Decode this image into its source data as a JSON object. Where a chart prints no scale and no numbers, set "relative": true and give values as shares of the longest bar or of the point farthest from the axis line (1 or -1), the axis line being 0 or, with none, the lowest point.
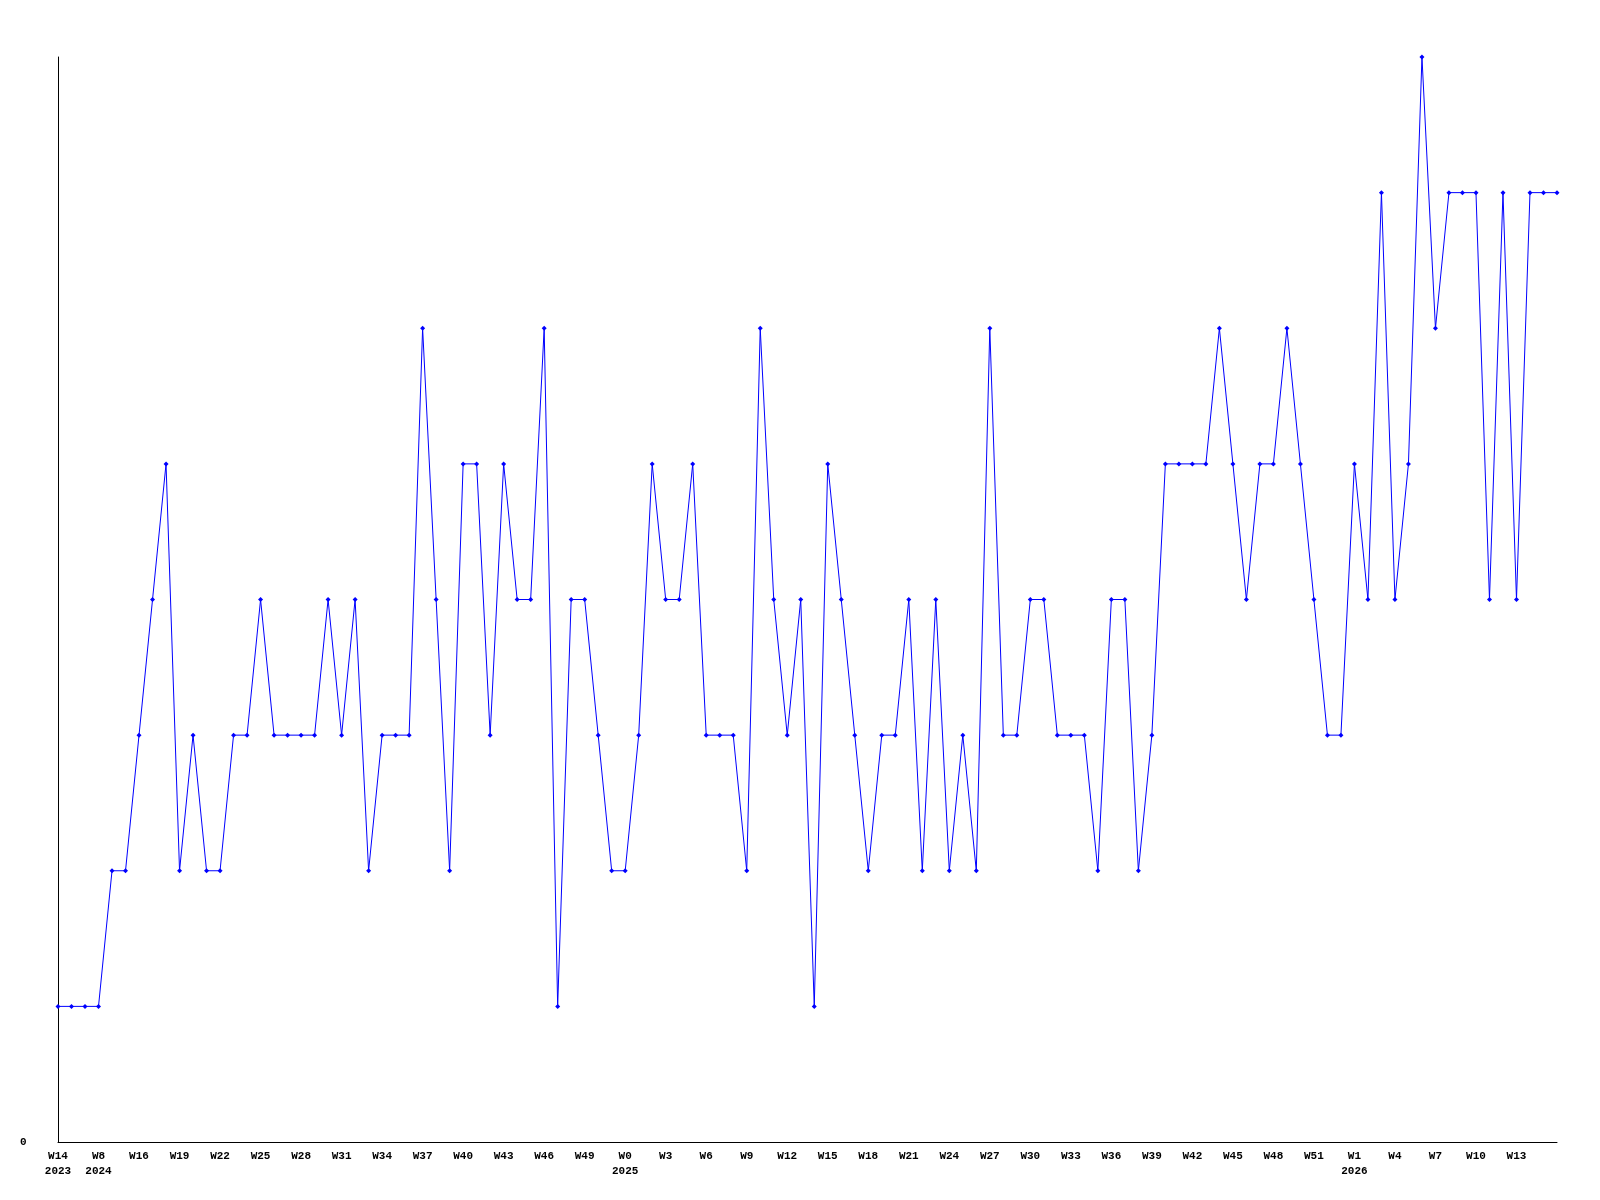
{
  "chart_data": {
    "type": "line",
    "relative": true,
    "marker": "diamond",
    "line_style": "solid",
    "annotations": [
      "0"
    ],
    "categories": [
      "W14\n2023",
      null,
      null,
      "W8\n2024",
      null,
      null,
      "W16",
      null,
      null,
      "W19",
      null,
      null,
      "W22",
      null,
      null,
      "W25",
      null,
      null,
      "W28",
      null,
      null,
      "W31",
      null,
      null,
      "W34",
      null,
      null,
      "W37",
      null,
      null,
      "W40",
      null,
      null,
      "W43",
      null,
      null,
      "W46",
      null,
      null,
      "W49",
      null,
      null,
      "W0\n2025",
      null,
      null,
      "W3",
      null,
      null,
      "W6",
      null,
      null,
      "W9",
      null,
      null,
      "W12",
      null,
      null,
      "W15",
      null,
      null,
      "W18",
      null,
      null,
      "W21",
      null,
      null,
      "W24",
      null,
      null,
      "W27",
      null,
      null,
      "W30",
      null,
      null,
      "W33",
      null,
      null,
      "W36",
      null,
      null,
      "W39",
      null,
      null,
      "W42",
      null,
      null,
      "W45",
      null,
      null,
      "W48",
      null,
      null,
      "W51",
      null,
      null,
      "W1\n2026",
      null,
      null,
      "W4",
      null,
      null,
      "W7",
      null,
      null,
      "W10",
      null,
      null,
      "W13",
      null,
      null,
      null
    ],
    "series": [
      {
        "color": "#0000ff",
        "values": [
          0.125,
          0.125,
          0.125,
          0.125,
          0.25,
          0.25,
          0.375,
          0.5,
          0.625,
          0.25,
          0.375,
          0.25,
          0.25,
          0.375,
          0.375,
          0.5,
          0.375,
          0.375,
          0.375,
          0.375,
          0.5,
          0.375,
          0.5,
          0.25,
          0.375,
          0.375,
          0.375,
          0.75,
          0.5,
          0.25,
          0.625,
          0.625,
          0.375,
          0.625,
          0.5,
          0.5,
          0.75,
          0.125,
          0.5,
          0.5,
          0.375,
          0.25,
          0.25,
          0.375,
          0.625,
          0.5,
          0.5,
          0.625,
          0.375,
          0.375,
          0.375,
          0.25,
          0.75,
          0.5,
          0.375,
          0.5,
          0.125,
          0.625,
          0.5,
          0.375,
          0.25,
          0.375,
          0.375,
          0.5,
          0.25,
          0.5,
          0.25,
          0.375,
          0.25,
          0.75,
          0.375,
          0.375,
          0.5,
          0.5,
          0.375,
          0.375,
          0.375,
          0.25,
          0.5,
          0.5,
          0.25,
          0.375,
          0.625,
          0.625,
          0.625,
          0.625,
          0.75,
          0.625,
          0.5,
          0.625,
          0.625,
          0.75,
          0.625,
          0.5,
          0.375,
          0.375,
          0.625,
          0.5,
          0.875,
          0.5,
          0.625,
          1,
          0.75,
          0.875,
          0.875,
          0.875,
          0.5,
          0.875,
          0.5,
          0.875,
          0.875,
          0.875
        ]
      }
    ]
  }
}
